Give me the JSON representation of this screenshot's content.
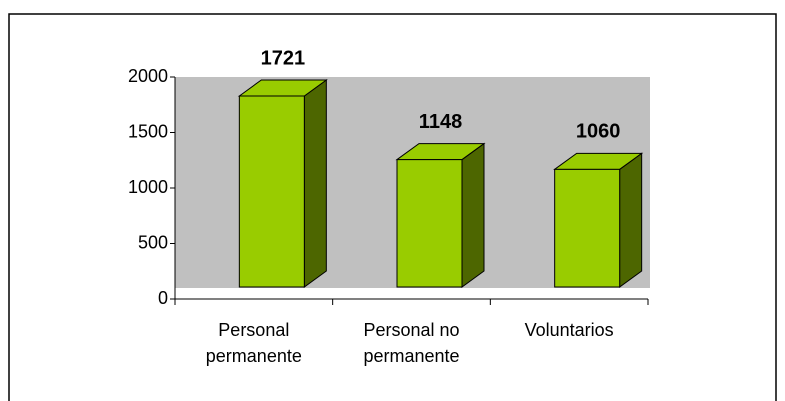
{
  "chart_data": {
    "type": "bar3d",
    "categories": [
      "Personal permanente",
      "Personal no permanente",
      "Voluntarios"
    ],
    "values": [
      1721,
      1148,
      1060
    ],
    "color": "#99cc00",
    "side_color": "#4d6600",
    "wall_color": "#c0c0c0",
    "ylim": [
      0,
      2000
    ],
    "yticks": [
      0,
      500,
      1000,
      1500,
      2000
    ]
  }
}
